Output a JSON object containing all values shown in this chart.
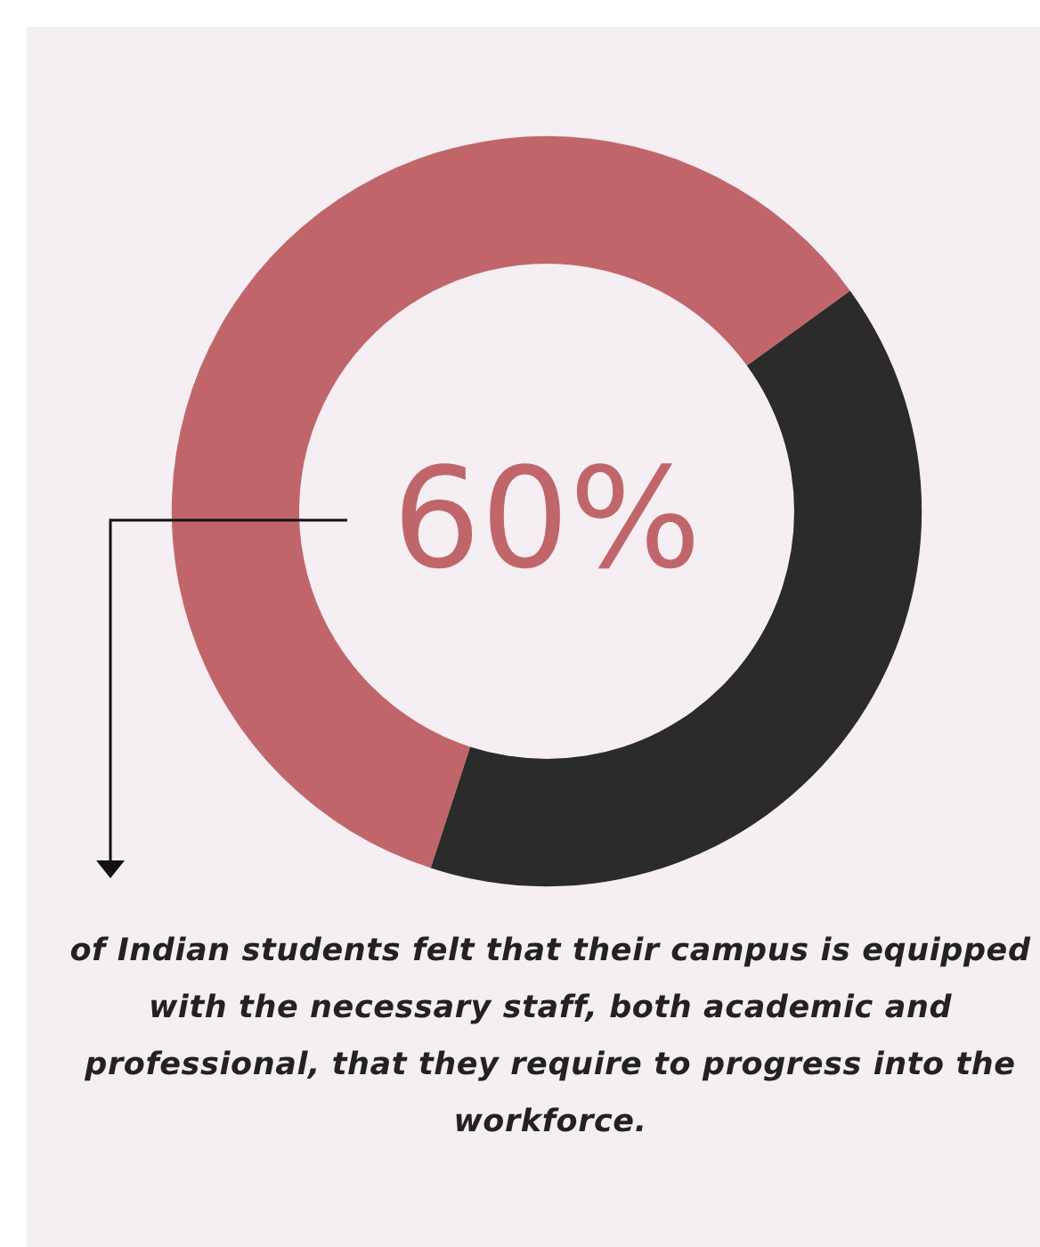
{
  "chart_data": {
    "type": "donut",
    "categories": [
      null,
      null
    ],
    "values": [
      60,
      40
    ],
    "colors": [
      "#c0666a",
      "#2b2b2b"
    ],
    "annotations": [
      "60%",
      "of Indian students felt that their campus is equipped with the necessary staff, both academic and professional, that they require to progress into the workforce."
    ]
  }
}
